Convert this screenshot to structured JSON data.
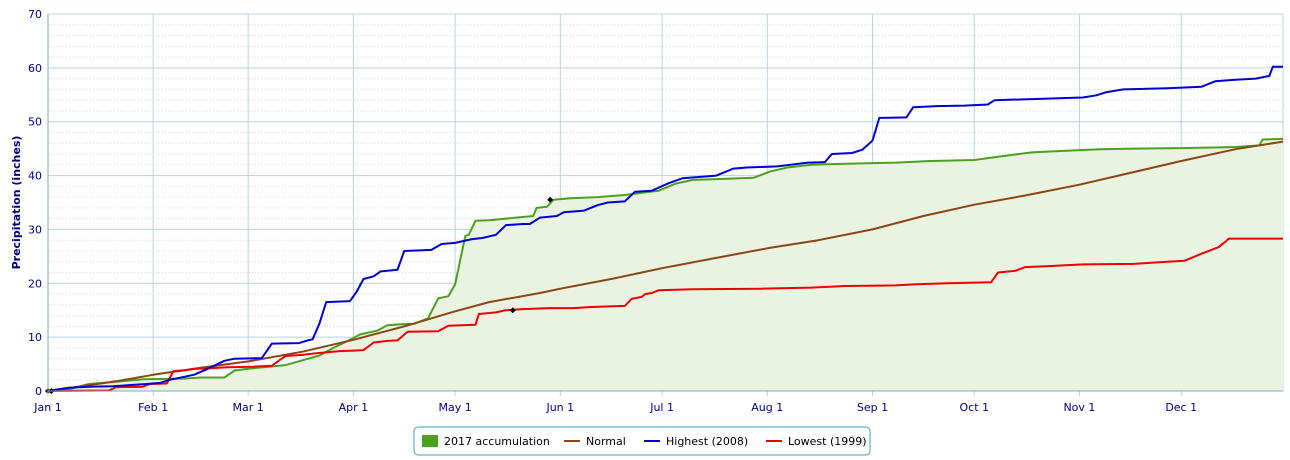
{
  "chart_data": {
    "type": "line",
    "title": "",
    "xlabel": "",
    "ylabel": "Precipitation (inches)",
    "ylim": [
      0,
      70
    ],
    "yticks": [
      "0",
      "10",
      "20",
      "30",
      "40",
      "50",
      "60",
      "70"
    ],
    "x_range_days": [
      0,
      364
    ],
    "x_ticks": [
      {
        "label": "Jan 1",
        "day": 0
      },
      {
        "label": "Feb 1",
        "day": 31
      },
      {
        "label": "Mar 1",
        "day": 59
      },
      {
        "label": "Apr 1",
        "day": 90
      },
      {
        "label": "May 1",
        "day": 120
      },
      {
        "label": "Jun 1",
        "day": 151
      },
      {
        "label": "Jul 1",
        "day": 181
      },
      {
        "label": "Aug 1",
        "day": 212
      },
      {
        "label": "Sep 1",
        "day": 243
      },
      {
        "label": "Oct 1",
        "day": 273
      },
      {
        "label": "Nov 1",
        "day": 304
      },
      {
        "label": "Dec 1",
        "day": 334
      }
    ],
    "grid": true,
    "legend_position": "bottom-center",
    "series": [
      {
        "name": "2017 accumulation",
        "kind": "area",
        "color": "#4aa11f",
        "fill": "#eaf3e1",
        "points": [
          [
            0,
            0
          ],
          [
            6,
            0.3
          ],
          [
            12,
            1.3
          ],
          [
            20,
            1.7
          ],
          [
            28,
            2.2
          ],
          [
            40,
            2.3
          ],
          [
            45,
            2.5
          ],
          [
            52,
            2.5
          ],
          [
            55,
            3.8
          ],
          [
            60,
            4.2
          ],
          [
            70,
            4.8
          ],
          [
            75,
            5.7
          ],
          [
            80,
            6.6
          ],
          [
            85,
            8.3
          ],
          [
            89,
            9.5
          ],
          [
            92,
            10.5
          ],
          [
            97,
            11.2
          ],
          [
            100,
            12.2
          ],
          [
            104,
            12.4
          ],
          [
            108,
            12.5
          ],
          [
            112,
            13.5
          ],
          [
            115,
            17.2
          ],
          [
            118,
            17.6
          ],
          [
            120,
            19.8
          ],
          [
            123,
            28.8
          ],
          [
            124,
            29.0
          ],
          [
            126,
            31.6
          ],
          [
            130,
            31.7
          ],
          [
            138,
            32.2
          ],
          [
            143,
            32.5
          ],
          [
            144,
            34.0
          ],
          [
            147,
            34.2
          ],
          [
            149,
            35.5
          ],
          [
            154,
            35.8
          ],
          [
            162,
            36.0
          ],
          [
            170,
            36.4
          ],
          [
            175,
            36.8
          ],
          [
            180,
            37.2
          ],
          [
            185,
            38.5
          ],
          [
            190,
            39.2
          ],
          [
            200,
            39.4
          ],
          [
            208,
            39.6
          ],
          [
            213,
            40.8
          ],
          [
            218,
            41.5
          ],
          [
            225,
            42.0
          ],
          [
            235,
            42.2
          ],
          [
            250,
            42.4
          ],
          [
            260,
            42.7
          ],
          [
            273,
            42.9
          ],
          [
            280,
            43.5
          ],
          [
            290,
            44.3
          ],
          [
            300,
            44.6
          ],
          [
            310,
            44.9
          ],
          [
            320,
            45.0
          ],
          [
            334,
            45.1
          ],
          [
            350,
            45.3
          ],
          [
            357,
            45.6
          ],
          [
            358,
            46.7
          ],
          [
            364,
            46.8
          ]
        ]
      },
      {
        "name": "Normal",
        "kind": "line",
        "color": "#8b4513",
        "points": [
          [
            0,
            0
          ],
          [
            10,
            0.9
          ],
          [
            20,
            1.8
          ],
          [
            31,
            3.0
          ],
          [
            45,
            4.3
          ],
          [
            59,
            5.5
          ],
          [
            75,
            7.3
          ],
          [
            90,
            9.5
          ],
          [
            105,
            12.0
          ],
          [
            120,
            14.8
          ],
          [
            130,
            16.5
          ],
          [
            145,
            18.2
          ],
          [
            151,
            19.0
          ],
          [
            166,
            20.8
          ],
          [
            181,
            22.8
          ],
          [
            196,
            24.6
          ],
          [
            212,
            26.5
          ],
          [
            227,
            28.0
          ],
          [
            243,
            30.0
          ],
          [
            258,
            32.5
          ],
          [
            273,
            34.6
          ],
          [
            288,
            36.3
          ],
          [
            304,
            38.3
          ],
          [
            319,
            40.5
          ],
          [
            334,
            42.7
          ],
          [
            350,
            44.9
          ],
          [
            364,
            46.3
          ]
        ]
      },
      {
        "name": "Highest (2008)",
        "kind": "line",
        "color": "#0000d0",
        "points": [
          [
            0,
            0
          ],
          [
            6,
            0.6
          ],
          [
            12,
            0.8
          ],
          [
            19,
            0.9
          ],
          [
            29,
            1.3
          ],
          [
            33,
            1.5
          ],
          [
            36,
            2.1
          ],
          [
            43,
            3.0
          ],
          [
            47,
            4.1
          ],
          [
            52,
            5.6
          ],
          [
            55,
            6.0
          ],
          [
            63,
            6.1
          ],
          [
            66,
            8.8
          ],
          [
            74,
            8.9
          ],
          [
            76,
            9.3
          ],
          [
            78,
            9.6
          ],
          [
            80,
            12.5
          ],
          [
            82,
            16.5
          ],
          [
            89,
            16.7
          ],
          [
            91,
            18.5
          ],
          [
            93,
            20.8
          ],
          [
            96,
            21.3
          ],
          [
            98,
            22.2
          ],
          [
            103,
            22.5
          ],
          [
            105,
            26.0
          ],
          [
            113,
            26.2
          ],
          [
            116,
            27.3
          ],
          [
            120,
            27.5
          ],
          [
            125,
            28.2
          ],
          [
            128,
            28.4
          ],
          [
            132,
            29.0
          ],
          [
            135,
            30.8
          ],
          [
            140,
            31.0
          ],
          [
            142,
            31.0
          ],
          [
            145,
            32.2
          ],
          [
            150,
            32.5
          ],
          [
            152,
            33.2
          ],
          [
            158,
            33.5
          ],
          [
            162,
            34.5
          ],
          [
            165,
            35.0
          ],
          [
            170,
            35.2
          ],
          [
            173,
            37.0
          ],
          [
            178,
            37.2
          ],
          [
            183,
            38.6
          ],
          [
            187,
            39.5
          ],
          [
            197,
            40.0
          ],
          [
            202,
            41.3
          ],
          [
            206,
            41.5
          ],
          [
            215,
            41.7
          ],
          [
            224,
            42.4
          ],
          [
            229,
            42.5
          ],
          [
            231,
            44.0
          ],
          [
            237,
            44.2
          ],
          [
            240,
            44.8
          ],
          [
            243,
            46.5
          ],
          [
            245,
            50.7
          ],
          [
            253,
            50.8
          ],
          [
            255,
            52.7
          ],
          [
            262,
            52.9
          ],
          [
            270,
            53.0
          ],
          [
            277,
            53.2
          ],
          [
            279,
            54.0
          ],
          [
            290,
            54.2
          ],
          [
            300,
            54.4
          ],
          [
            305,
            54.5
          ],
          [
            309,
            54.9
          ],
          [
            312,
            55.5
          ],
          [
            317,
            56.0
          ],
          [
            330,
            56.2
          ],
          [
            340,
            56.5
          ],
          [
            344,
            57.5
          ],
          [
            350,
            57.8
          ],
          [
            356,
            58.0
          ],
          [
            360,
            58.5
          ],
          [
            361,
            60.2
          ],
          [
            364,
            60.2
          ]
        ]
      },
      {
        "name": "Lowest (1999)",
        "kind": "line",
        "color": "#ee0000",
        "points": [
          [
            0,
            0
          ],
          [
            18,
            0.1
          ],
          [
            20,
            0.7
          ],
          [
            28,
            0.8
          ],
          [
            30,
            1.3
          ],
          [
            35,
            1.4
          ],
          [
            37,
            3.7
          ],
          [
            40,
            3.8
          ],
          [
            43,
            4.1
          ],
          [
            47,
            4.2
          ],
          [
            53,
            4.4
          ],
          [
            60,
            4.5
          ],
          [
            66,
            4.7
          ],
          [
            68,
            5.6
          ],
          [
            70,
            6.5
          ],
          [
            75,
            6.7
          ],
          [
            79,
            7.0
          ],
          [
            86,
            7.4
          ],
          [
            90,
            7.5
          ],
          [
            93,
            7.6
          ],
          [
            96,
            9.0
          ],
          [
            100,
            9.3
          ],
          [
            103,
            9.4
          ],
          [
            106,
            11.0
          ],
          [
            115,
            11.1
          ],
          [
            118,
            12.1
          ],
          [
            126,
            12.3
          ],
          [
            127,
            14.3
          ],
          [
            132,
            14.6
          ],
          [
            135,
            15.0
          ],
          [
            140,
            15.2
          ],
          [
            148,
            15.4
          ],
          [
            155,
            15.4
          ],
          [
            160,
            15.6
          ],
          [
            170,
            15.8
          ],
          [
            172,
            17.1
          ],
          [
            175,
            17.5
          ],
          [
            176,
            18.0
          ],
          [
            178,
            18.2
          ],
          [
            180,
            18.7
          ],
          [
            190,
            18.9
          ],
          [
            210,
            19.0
          ],
          [
            225,
            19.2
          ],
          [
            235,
            19.5
          ],
          [
            250,
            19.6
          ],
          [
            255,
            19.8
          ],
          [
            265,
            20.0
          ],
          [
            278,
            20.2
          ],
          [
            280,
            22.0
          ],
          [
            285,
            22.3
          ],
          [
            288,
            23.0
          ],
          [
            295,
            23.2
          ],
          [
            305,
            23.5
          ],
          [
            320,
            23.6
          ],
          [
            330,
            24.0
          ],
          [
            335,
            24.2
          ],
          [
            340,
            25.5
          ],
          [
            345,
            26.7
          ],
          [
            347,
            27.7
          ],
          [
            348,
            28.3
          ],
          [
            364,
            28.3
          ]
        ]
      }
    ],
    "markers": [
      {
        "series": "2017 accumulation",
        "x": 0,
        "y": 0
      },
      {
        "series": "2017 accumulation",
        "x": 148,
        "y": 35.5
      },
      {
        "series": "Lowest (1999)",
        "x": 137,
        "y": 15.0
      }
    ]
  },
  "legend": {
    "items": [
      {
        "label": "2017 accumulation",
        "color": "#4aa11f",
        "symbol": "box"
      },
      {
        "label": "Normal",
        "color": "#8b4513",
        "symbol": "line"
      },
      {
        "label": "Highest (2008)",
        "color": "#0000d0",
        "symbol": "line"
      },
      {
        "label": "Lowest (1999)",
        "color": "#ee0000",
        "symbol": "line"
      }
    ]
  }
}
